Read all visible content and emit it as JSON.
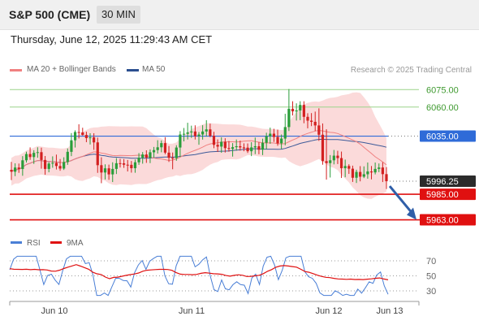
{
  "header": {
    "title": "S&P 500 (CME)",
    "interval": "30 MIN"
  },
  "timestamp": "Thursday, June 12, 2025 11:29:43 AM CET",
  "legend": [
    {
      "label": "MA 20 + Bollinger Bands",
      "color": "#f08080"
    },
    {
      "label": "MA 50",
      "color": "#2b4f8f"
    }
  ],
  "credit": "Research © 2025 Trading Central",
  "colors": {
    "up": "#2a9d3a",
    "down": "#d32020",
    "band": "#fbdada",
    "ma20": "#f08080",
    "ma50": "#3d5a99",
    "pivot": "#2f6bd8",
    "support": "#e01010",
    "resistance": "#9bd48a",
    "current": "#2b2b2b",
    "arrow": "#2f5ea8",
    "rsi": "#4a7fd6",
    "rsi_ma": "#e01010"
  },
  "chart_data": [
    {
      "type": "candlestick",
      "ylim": [
        5955,
        6085
      ],
      "x_labels": [
        "Jun 10",
        "Jun 11",
        "Jun 12",
        "Jun 13"
      ],
      "levels": [
        {
          "label": "6075.00",
          "value": 6075,
          "role": "resistance"
        },
        {
          "label": "6060.00",
          "value": 6060,
          "role": "resistance"
        },
        {
          "label": "6035.00",
          "value": 6035,
          "role": "pivot"
        },
        {
          "label": "5996.25",
          "value": 5996.25,
          "role": "current"
        },
        {
          "label": "5985.00",
          "value": 5985,
          "role": "support"
        },
        {
          "label": "5963.00",
          "value": 5963,
          "role": "support"
        }
      ],
      "series": [
        {
          "name": "MA 20 + Bollinger Bands"
        },
        {
          "name": "MA 50"
        }
      ],
      "candles": [
        [
          6006.0,
          6012.8,
          5997.2,
          6004.4
        ],
        [
          6004.4,
          6011.6,
          6000.6,
          6008.0
        ],
        [
          6008.0,
          6011.4,
          6003.4,
          6006.7
        ],
        [
          6006.7,
          6017.8,
          6000.9,
          6014.2
        ],
        [
          6014.2,
          6021.6,
          6012.3,
          6019.6
        ],
        [
          6019.6,
          6025.3,
          6014.6,
          6017.0
        ],
        [
          6017.0,
          6022.9,
          6011.1,
          6020.6
        ],
        [
          6020.6,
          6025.4,
          6016.4,
          6021.2
        ],
        [
          6021.2,
          6025.1,
          6007.0,
          6014.5
        ],
        [
          6014.5,
          6017.9,
          6001.8,
          6006.8
        ],
        [
          6006.8,
          6012.6,
          6003.9,
          6011.4
        ],
        [
          6011.4,
          6017.6,
          6007.8,
          6012.0
        ],
        [
          6012.0,
          6019.1,
          6006.3,
          6009.3
        ],
        [
          6009.3,
          6015.3,
          6005.2,
          6007.1
        ],
        [
          6007.1,
          6016.8,
          6005.9,
          6012.7
        ],
        [
          6012.7,
          6024.4,
          6010.3,
          6021.5
        ],
        [
          6021.5,
          6037.6,
          6017.8,
          6031.4
        ],
        [
          6031.4,
          6040.0,
          6025.2,
          6038.5
        ],
        [
          6038.5,
          6045.2,
          6033.0,
          6038.2
        ],
        [
          6038.2,
          6042.2,
          6035.5,
          6036.0
        ],
        [
          6036.0,
          6038.8,
          6029.8,
          6033.3
        ],
        [
          6033.3,
          6037.5,
          6027.8,
          6033.9
        ],
        [
          6033.9,
          6037.5,
          6023.2,
          6029.6
        ],
        [
          6029.6,
          6033.7,
          6003.4,
          6010.0
        ],
        [
          6010.0,
          6016.8,
          5994.5,
          6003.7
        ],
        [
          6003.7,
          6010.7,
          5997.7,
          6007.3
        ],
        [
          6007.3,
          6010.5,
          5997.4,
          6002.1
        ],
        [
          6002.1,
          6012.5,
          5995.5,
          6006.8
        ],
        [
          6006.8,
          6016.1,
          6002.4,
          6011.7
        ],
        [
          6011.7,
          6015.5,
          6008.0,
          6011.6
        ],
        [
          6011.6,
          6015.3,
          6007.7,
          6010.4
        ],
        [
          6010.4,
          6014.5,
          6004.6,
          6010.3
        ],
        [
          6010.3,
          6013.6,
          6003.6,
          6007.4
        ],
        [
          6007.4,
          6014.9,
          6003.5,
          6012.5
        ],
        [
          6012.5,
          6020.4,
          6010.3,
          6016.4
        ],
        [
          6016.4,
          6021.3,
          6011.3,
          6019.2
        ],
        [
          6019.2,
          6022.8,
          6012.0,
          6016.5
        ],
        [
          6016.5,
          6023.6,
          6011.8,
          6021.1
        ],
        [
          6021.1,
          6025.7,
          6016.4,
          6023.0
        ],
        [
          6023.0,
          6031.5,
          6020.0,
          6025.4
        ],
        [
          6025.4,
          6031.3,
          6021.1,
          6029.0
        ],
        [
          6029.0,
          6034.1,
          6019.4,
          6020.8
        ],
        [
          6020.8,
          6026.5,
          6012.8,
          6016.4
        ],
        [
          6016.4,
          6020.9,
          6006.5,
          6016.1
        ],
        [
          6016.1,
          6027.2,
          6013.8,
          6025.2
        ],
        [
          6025.2,
          6039.3,
          6017.1,
          6036.4
        ],
        [
          6036.4,
          6042.0,
          6030.5,
          6037.0
        ],
        [
          6037.0,
          6046.5,
          6032.1,
          6038.2
        ],
        [
          6038.2,
          6044.0,
          6033.5,
          6039.0
        ],
        [
          6039.0,
          6044.3,
          6032.1,
          6035.0
        ],
        [
          6035.0,
          6038.5,
          6027.6,
          6036.4
        ],
        [
          6036.4,
          6044.4,
          6032.0,
          6039.0
        ],
        [
          6039.0,
          6048.7,
          6034.6,
          6040.8
        ],
        [
          6040.8,
          6045.8,
          6034.1,
          6035.2
        ],
        [
          6035.2,
          6038.7,
          6024.6,
          6027.5
        ],
        [
          6027.5,
          6032.2,
          6021.4,
          6026.0
        ],
        [
          6026.0,
          6034.0,
          6020.7,
          6030.1
        ],
        [
          6030.1,
          6033.2,
          6020.9,
          6024.7
        ],
        [
          6024.7,
          6030.8,
          6021.6,
          6024.0
        ],
        [
          6024.0,
          6029.0,
          6017.4,
          6025.5
        ],
        [
          6025.5,
          6032.1,
          6022.5,
          6026.3
        ],
        [
          6026.3,
          6031.2,
          6022.5,
          6025.3
        ],
        [
          6025.3,
          6028.8,
          6022.0,
          6025.1
        ],
        [
          6025.1,
          6028.7,
          6020.5,
          6022.0
        ],
        [
          6022.0,
          6029.8,
          6017.8,
          6025.3
        ],
        [
          6025.3,
          6033.8,
          6019.5,
          6026.3
        ],
        [
          6026.3,
          6029.9,
          6019.4,
          6023.3
        ],
        [
          6023.3,
          6032.8,
          6018.7,
          6029.3
        ],
        [
          6029.3,
          6037.9,
          6023.7,
          6034.9
        ],
        [
          6034.9,
          6042.3,
          6028.4,
          6037.1
        ],
        [
          6037.1,
          6041.3,
          6030.0,
          6034.3
        ],
        [
          6034.3,
          6040.6,
          6026.7,
          6028.8
        ],
        [
          6028.8,
          6036.4,
          6024.0,
          6032.9
        ],
        [
          6032.9,
          6054.2,
          6027.1,
          6042.8
        ],
        [
          6042.8,
          6075.5,
          6039.4,
          6058.5
        ],
        [
          6058.5,
          6065.0,
          6052.8,
          6056.3
        ],
        [
          6056.3,
          6063.2,
          6048.4,
          6057.1
        ],
        [
          6057.1,
          6065.0,
          6048.7,
          6061.8
        ],
        [
          6061.8,
          6065.0,
          6046.1,
          6051.6
        ],
        [
          6051.6,
          6054.7,
          6041.7,
          6048.3
        ],
        [
          6048.3,
          6054.8,
          6043.6,
          6047.3
        ],
        [
          6047.3,
          6056.1,
          6039.4,
          6044.2
        ],
        [
          6044.2,
          6058.9,
          6030.9,
          6036.2
        ],
        [
          6036.2,
          6045.9,
          6010.4,
          6013.5
        ],
        [
          6013.5,
          6040.9,
          5997.6,
          6011.8
        ],
        [
          6011.8,
          6018.7,
          5999.4,
          6014.2
        ],
        [
          6014.2,
          6023.1,
          6010.7,
          6018.2
        ],
        [
          6018.2,
          6022.4,
          6011.0,
          6016.1
        ],
        [
          6016.1,
          6021.7,
          5999.0,
          6007.4
        ],
        [
          6007.4,
          6014.8,
          5999.6,
          6009.3
        ],
        [
          6009.3,
          6010.8,
          6002.5,
          6007.0
        ],
        [
          6007.0,
          6009.6,
          5995.6,
          5999.2
        ],
        [
          5999.2,
          6006.1,
          5994.7,
          6004.2
        ],
        [
          6004.2,
          6009.2,
          5996.1,
          6000.1
        ],
        [
          6000.1,
          6009.0,
          5998.9,
          6002.2
        ],
        [
          6002.2,
          6012.3,
          5998.4,
          6004.6
        ],
        [
          6004.6,
          6009.3,
          5997.8,
          6003.8
        ],
        [
          6003.8,
          6012.3,
          6002.1,
          6006.8
        ],
        [
          6006.8,
          6011.5,
          6004.0,
          6008.0
        ],
        [
          6008.0,
          6012.5,
          5995.5,
          6002.3
        ],
        [
          6002.3,
          6008.4,
          5989.5,
          5996.2
        ]
      ]
    },
    {
      "type": "line",
      "title": "RSI",
      "ylim": [
        25,
        75
      ],
      "y_ticks": [
        "70",
        "50",
        "30"
      ],
      "series": [
        {
          "name": "RSI"
        },
        {
          "name": "9MA"
        }
      ],
      "rsi_ma_values": [
        59.5,
        58.8,
        58.7,
        58.5,
        58.8,
        58.2,
        58.6,
        58.1,
        58.2,
        57.8,
        56.4,
        56.2,
        57.6,
        59.7,
        61.6,
        63.2,
        64.9,
        63.0,
        60.9,
        58.8,
        54.8,
        52.7,
        51.7,
        48.4,
        46.2,
        47.9,
        48.3,
        49.5,
        50.7,
        51.6,
        52.5,
        53.8,
        56.2,
        57.5,
        57.9,
        58.3,
        58.6,
        58.6,
        58.4,
        57.3,
        54.4,
        52.3,
        51.8,
        51.8,
        51.5,
        51.9,
        53.4,
        54.2,
        53.6,
        52.8,
        52.6,
        52.1,
        50.4,
        49.6,
        50.6,
        51.4,
        50.8,
        49.1,
        49.4,
        50.0,
        50.8,
        52.9,
        56.1,
        58.3,
        61.5,
        63.1,
        63.6,
        63.1,
        62.3,
        61.6,
        58.8,
        55.7,
        54.8,
        52.9,
        50.9,
        49.2,
        48.1,
        47.6,
        46.7,
        45.9,
        45.7,
        45.3,
        45.7,
        45.1,
        45.2,
        45.0,
        45.6,
        46.0,
        46.8,
        47.2,
        45.8,
        44.7
      ]
    }
  ]
}
